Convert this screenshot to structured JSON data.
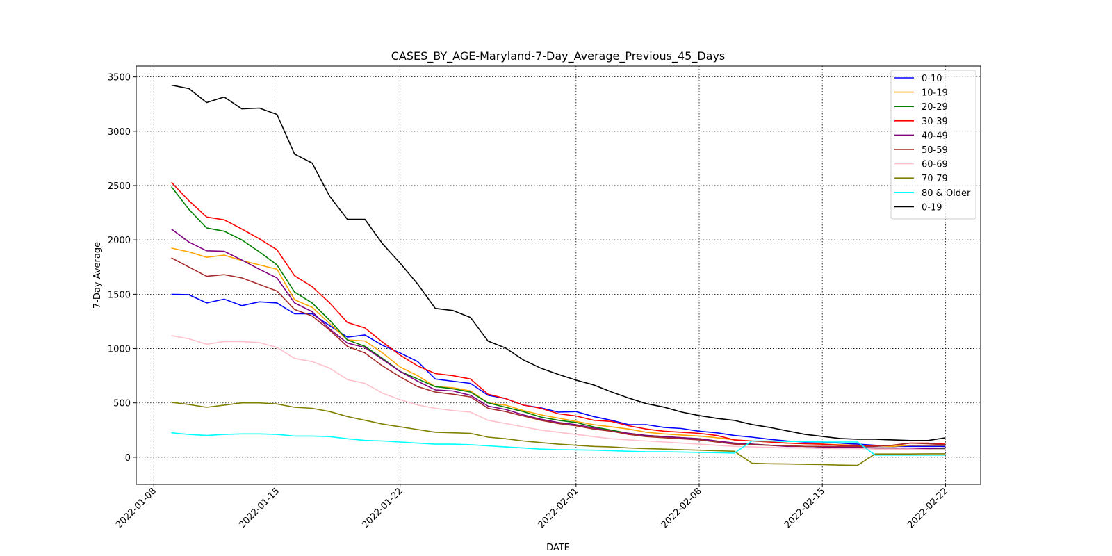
{
  "chart_data": {
    "type": "line",
    "title": "CASES_BY_AGE-Maryland-7-Day_Average_Previous_45_Days",
    "xlabel": "DATE",
    "ylabel": "7-Day Average",
    "x": [
      "2022-01-09",
      "2022-01-10",
      "2022-01-11",
      "2022-01-12",
      "2022-01-13",
      "2022-01-14",
      "2022-01-15",
      "2022-01-16",
      "2022-01-17",
      "2022-01-18",
      "2022-01-19",
      "2022-01-20",
      "2022-01-21",
      "2022-01-22",
      "2022-01-23",
      "2022-01-24",
      "2022-01-25",
      "2022-01-26",
      "2022-01-27",
      "2022-01-28",
      "2022-01-29",
      "2022-01-30",
      "2022-01-31",
      "2022-02-01",
      "2022-02-02",
      "2022-02-03",
      "2022-02-04",
      "2022-02-05",
      "2022-02-06",
      "2022-02-07",
      "2022-02-08",
      "2022-02-09",
      "2022-02-10",
      "2022-02-11",
      "2022-02-12",
      "2022-02-13",
      "2022-02-14",
      "2022-02-15",
      "2022-02-16",
      "2022-02-17",
      "2022-02-18",
      "2022-02-19",
      "2022-02-20",
      "2022-02-21",
      "2022-02-22"
    ],
    "xlim": [
      "2022-01-07",
      "2022-02-24"
    ],
    "xticks": [
      "2022-01-08",
      "2022-01-15",
      "2022-01-22",
      "2022-02-01",
      "2022-02-08",
      "2022-02-15",
      "2022-02-22"
    ],
    "ylim": [
      -250,
      3600
    ],
    "yticks": [
      0,
      500,
      1000,
      1500,
      2000,
      2500,
      3000,
      3500
    ],
    "grid": true,
    "legend": "upper right",
    "series": [
      {
        "name": "0-10",
        "color": "#0000ff",
        "values": [
          1500,
          1495,
          1420,
          1455,
          1395,
          1430,
          1420,
          1320,
          1320,
          1210,
          1105,
          1125,
          1030,
          960,
          880,
          720,
          700,
          680,
          570,
          540,
          480,
          455,
          415,
          420,
          375,
          340,
          300,
          300,
          275,
          265,
          240,
          225,
          200,
          185,
          165,
          150,
          140,
          140,
          130,
          120,
          110,
          100,
          100,
          100,
          100
        ]
      },
      {
        "name": "10-19",
        "color": "#ffa500",
        "values": [
          1925,
          1890,
          1840,
          1860,
          1810,
          1770,
          1730,
          1450,
          1380,
          1230,
          1080,
          1070,
          960,
          830,
          750,
          650,
          640,
          610,
          500,
          480,
          430,
          390,
          360,
          330,
          300,
          280,
          260,
          230,
          215,
          205,
          195,
          180,
          160,
          150,
          140,
          130,
          125,
          120,
          115,
          110,
          105,
          100,
          110,
          110,
          110
        ]
      },
      {
        "name": "20-29",
        "color": "#008000",
        "values": [
          2490,
          2280,
          2110,
          2080,
          2000,
          1890,
          1770,
          1520,
          1420,
          1260,
          1080,
          1020,
          910,
          790,
          720,
          650,
          630,
          600,
          500,
          460,
          420,
          370,
          340,
          320,
          280,
          250,
          220,
          200,
          190,
          180,
          170,
          150,
          130,
          120,
          110,
          105,
          100,
          95,
          90,
          90,
          85,
          85,
          80,
          80,
          80
        ]
      },
      {
        "name": "30-39",
        "color": "#ff0000",
        "values": [
          2530,
          2360,
          2210,
          2185,
          2100,
          2010,
          1910,
          1670,
          1570,
          1420,
          1240,
          1190,
          1060,
          940,
          840,
          770,
          750,
          720,
          580,
          540,
          480,
          450,
          400,
          380,
          340,
          330,
          290,
          260,
          240,
          230,
          220,
          200,
          160,
          150,
          140,
          130,
          125,
          120,
          110,
          110,
          105,
          110,
          130,
          130,
          120
        ]
      },
      {
        "name": "40-49",
        "color": "#800080",
        "values": [
          2100,
          1980,
          1900,
          1895,
          1815,
          1730,
          1650,
          1420,
          1340,
          1180,
          1050,
          1010,
          900,
          790,
          700,
          620,
          610,
          570,
          470,
          440,
          390,
          350,
          320,
          300,
          270,
          240,
          220,
          200,
          190,
          180,
          170,
          150,
          130,
          120,
          110,
          100,
          100,
          95,
          90,
          90,
          85,
          85,
          80,
          80,
          85
        ]
      },
      {
        "name": "50-59",
        "color": "#a52a2a",
        "values": [
          1835,
          1750,
          1665,
          1680,
          1650,
          1590,
          1530,
          1360,
          1300,
          1170,
          1020,
          960,
          840,
          740,
          650,
          600,
          580,
          555,
          450,
          420,
          380,
          340,
          310,
          290,
          260,
          240,
          210,
          190,
          180,
          170,
          160,
          140,
          120,
          115,
          110,
          105,
          100,
          100,
          100,
          100,
          100,
          110,
          130,
          125,
          115
        ]
      },
      {
        "name": "60-69",
        "color": "#ffc0cb",
        "values": [
          1120,
          1090,
          1040,
          1065,
          1065,
          1055,
          1010,
          910,
          880,
          820,
          715,
          680,
          590,
          530,
          480,
          450,
          430,
          415,
          340,
          310,
          280,
          250,
          230,
          210,
          190,
          170,
          160,
          150,
          140,
          130,
          120,
          110,
          100,
          95,
          90,
          85,
          85,
          80,
          80,
          80,
          75,
          75,
          75,
          70,
          70
        ]
      },
      {
        "name": "70-79",
        "color": "#808000",
        "values": [
          505,
          485,
          460,
          480,
          500,
          500,
          490,
          460,
          450,
          420,
          375,
          340,
          305,
          280,
          255,
          230,
          225,
          220,
          185,
          170,
          150,
          135,
          120,
          110,
          100,
          95,
          85,
          80,
          75,
          70,
          65,
          60,
          55,
          -55,
          -60,
          -62,
          -65,
          -68,
          -72,
          -75,
          30,
          30,
          30,
          32,
          32
        ]
      },
      {
        "name": "80 & Older",
        "color": "#00ffff",
        "values": [
          225,
          210,
          200,
          210,
          215,
          215,
          210,
          195,
          195,
          190,
          170,
          155,
          150,
          140,
          130,
          120,
          120,
          115,
          105,
          95,
          85,
          75,
          70,
          68,
          65,
          60,
          55,
          50,
          50,
          48,
          45,
          42,
          38,
          150,
          150,
          145,
          145,
          140,
          140,
          140,
          20,
          20,
          20,
          20,
          20
        ]
      },
      {
        "name": "0-19",
        "color": "#000000",
        "values": [
          3424,
          3392,
          3264,
          3315,
          3206,
          3213,
          3155,
          2790,
          2707,
          2400,
          2189,
          2189,
          1965,
          1786,
          1594,
          1370,
          1350,
          1286,
          1069,
          1005,
          896,
          819,
          762,
          710,
          666,
          602,
          544,
          493,
          461,
          416,
          384,
          358,
          339,
          301,
          275,
          243,
          211,
          192,
          173,
          166,
          166,
          160,
          154,
          154,
          179
        ]
      }
    ]
  }
}
